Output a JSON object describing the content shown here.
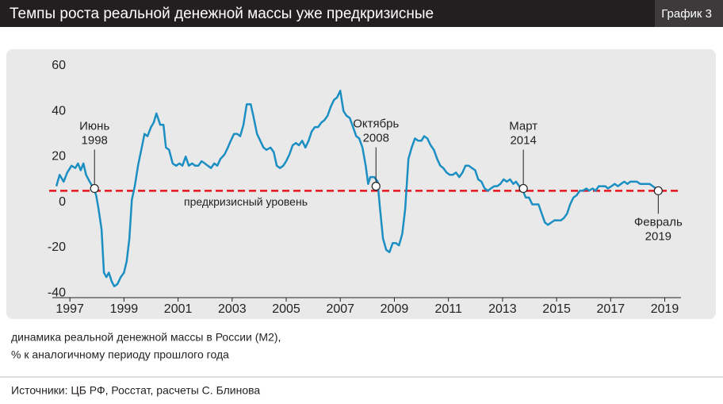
{
  "chart_data": {
    "type": "line",
    "title": "Темпы роста реальной денежной массы уже предкризисные",
    "badge": "График 3",
    "color": "#1b8ec2",
    "x": [
      1996.5,
      1996.62,
      1996.77,
      1996.9,
      1997.06,
      1997.2,
      1997.3,
      1997.4,
      1997.5,
      1997.6,
      1997.73,
      1997.88,
      1997.97,
      1998.06,
      1998.17,
      1998.26,
      1998.35,
      1998.44,
      1998.55,
      1998.64,
      1998.76,
      1998.88,
      1999.0,
      1999.1,
      1999.2,
      1999.29,
      1999.4,
      1999.52,
      1999.64,
      1999.76,
      1999.87,
      2000.0,
      2000.1,
      2000.2,
      2000.34,
      2000.46,
      2000.55,
      2000.67,
      2000.8,
      2000.93,
      2001.05,
      2001.16,
      2001.28,
      2001.4,
      2001.52,
      2001.63,
      2001.75,
      2001.87,
      2001.99,
      2002.1,
      2002.22,
      2002.34,
      2002.45,
      2002.57,
      2002.72,
      2002.84,
      2002.95,
      2003.07,
      2003.19,
      2003.3,
      2003.42,
      2003.54,
      2003.69,
      2003.8,
      2003.92,
      2004.04,
      2004.16,
      2004.27,
      2004.42,
      2004.54,
      2004.65,
      2004.77,
      2004.89,
      2005.0,
      2005.12,
      2005.24,
      2005.36,
      2005.47,
      2005.59,
      2005.71,
      2005.83,
      2005.94,
      2006.06,
      2006.18,
      2006.3,
      2006.41,
      2006.53,
      2006.65,
      2006.77,
      2006.88,
      2007.0,
      2007.12,
      2007.23,
      2007.35,
      2007.47,
      2007.59,
      2007.7,
      2007.82,
      2007.94,
      2008.03,
      2008.11,
      2008.26,
      2008.38,
      2008.47,
      2008.58,
      2008.7,
      2008.82,
      2008.94,
      2009.05,
      2009.17,
      2009.29,
      2009.4,
      2009.52,
      2009.64,
      2009.76,
      2009.88,
      2010.0,
      2010.1,
      2010.22,
      2010.34,
      2010.46,
      2010.58,
      2010.7,
      2010.81,
      2010.93,
      2011.05,
      2011.16,
      2011.28,
      2011.4,
      2011.52,
      2011.63,
      2011.75,
      2011.87,
      2011.99,
      2012.1,
      2012.22,
      2012.34,
      2012.46,
      2012.57,
      2012.69,
      2012.8,
      2012.92,
      2013.04,
      2013.16,
      2013.28,
      2013.4,
      2013.5,
      2013.62,
      2013.75,
      2013.86,
      2013.98,
      2014.1,
      2014.22,
      2014.33,
      2014.45,
      2014.57,
      2014.68,
      2014.8,
      2014.92,
      2015.04,
      2015.16,
      2015.27,
      2015.39,
      2015.5,
      2015.62,
      2015.74,
      2015.86,
      2015.97,
      2016.1,
      2016.2,
      2016.33,
      2016.44,
      2016.56,
      2016.68,
      2016.8,
      2016.9,
      2017.03,
      2017.15,
      2017.27,
      2017.38,
      2017.5,
      2017.62,
      2017.73,
      2017.85,
      2017.97,
      2018.09,
      2018.2,
      2018.32,
      2018.44,
      2018.56,
      2018.67,
      2018.76
    ],
    "values": [
      7,
      12,
      9,
      13,
      16,
      15,
      17,
      14,
      17,
      12,
      9,
      6,
      3,
      -3,
      -12,
      -31,
      -33,
      -31,
      -35,
      -37,
      -36,
      -33,
      -31,
      -26,
      -16,
      1,
      7,
      16,
      23,
      30,
      29,
      33,
      35,
      39,
      34,
      34,
      24,
      23,
      17,
      16,
      17,
      16,
      20,
      16,
      17,
      16,
      16,
      18,
      17,
      16,
      15,
      17,
      16,
      19,
      21,
      24,
      27,
      30,
      30,
      29,
      34,
      43,
      43,
      37,
      30,
      27,
      24,
      23,
      24,
      22,
      16,
      15,
      16,
      18,
      21,
      25,
      26,
      25,
      27,
      24,
      27,
      31,
      33,
      33,
      35,
      36,
      38,
      42,
      45,
      46,
      49,
      40,
      38,
      37,
      33,
      29,
      28,
      24,
      16,
      8,
      11,
      11,
      9,
      -3,
      -16,
      -21,
      -22,
      -18,
      -18,
      -19,
      -14,
      -3,
      19,
      24,
      28,
      27,
      27,
      29,
      28,
      25,
      23,
      19,
      16,
      15,
      13,
      12,
      12,
      13,
      11,
      13,
      16,
      16,
      15,
      14,
      10,
      9,
      6,
      5,
      6,
      7,
      7,
      8,
      10,
      9,
      10,
      8,
      9,
      7,
      5,
      2,
      2,
      -1,
      -1,
      -1,
      -5,
      -9,
      -10,
      -9,
      -8,
      -8,
      -8,
      -7,
      -5,
      -1,
      2,
      3,
      5,
      5,
      6,
      5,
      6,
      5,
      7,
      7,
      7,
      6,
      7,
      8,
      7,
      8,
      9,
      8,
      9,
      9,
      9,
      8,
      8,
      8,
      8,
      7,
      6,
      5
    ],
    "xlim": [
      1996.35,
      2019.6
    ],
    "xticks": [
      1997,
      1999,
      2001,
      2003,
      2005,
      2007,
      2009,
      2011,
      2013,
      2015,
      2017,
      2019
    ],
    "ylim": [
      -42,
      62
    ],
    "yticks": [
      60,
      40,
      20,
      0,
      -20,
      -40
    ],
    "reference_line": {
      "value": 5,
      "label": "предкризисный уровень",
      "color": "#e3161d"
    },
    "annotations": [
      {
        "lines": [
          "Июнь",
          "1998"
        ],
        "x": 1997.91,
        "y": 6,
        "position": "above"
      },
      {
        "lines": [
          "Октябрь",
          "2008"
        ],
        "x": 2008.32,
        "y": 7,
        "position": "above"
      },
      {
        "lines": [
          "Март",
          "2014"
        ],
        "x": 2013.77,
        "y": 6,
        "position": "above"
      },
      {
        "lines": [
          "Февраль",
          "2019"
        ],
        "x": 2018.76,
        "y": 5,
        "position": "below"
      }
    ],
    "note": [
      "динамика реальной денежной массы в России (М2),",
      "% к аналогичному периоду прошлого года"
    ],
    "source": "Источники: ЦБ РФ, Росстат, расчеты С. Блинова"
  }
}
